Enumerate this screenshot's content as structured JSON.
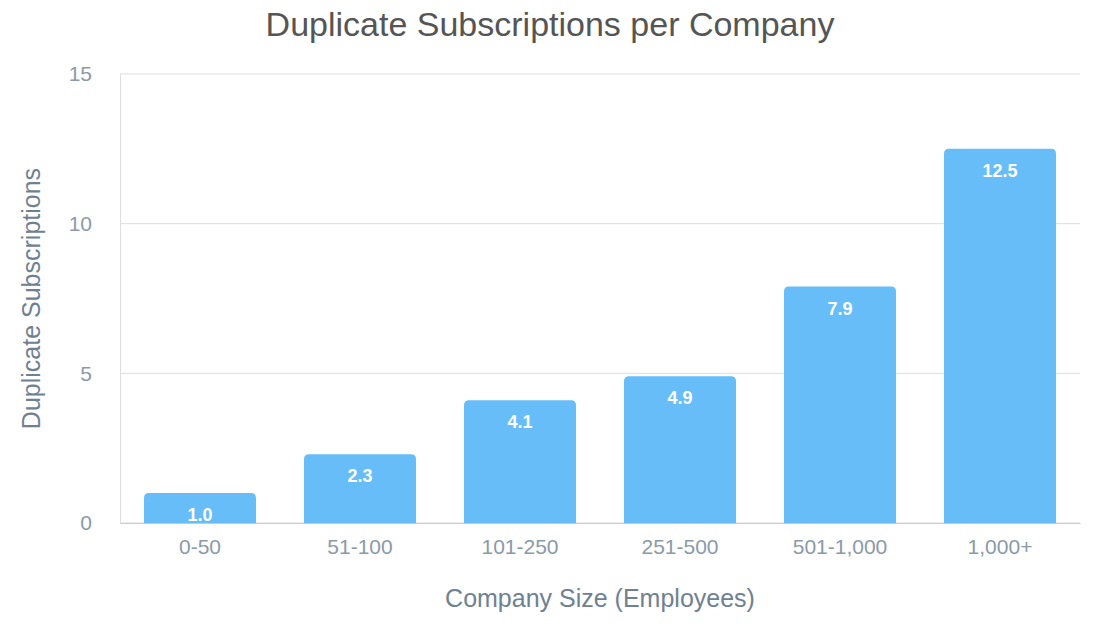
{
  "chart_data": {
    "type": "bar",
    "title": "Duplicate Subscriptions per Company",
    "x_label": "Company Size (Employees)",
    "y_label": "Duplicate Subscriptions",
    "categories": [
      "0-50",
      "51-100",
      "101-250",
      "251-500",
      "501-1,000",
      "1,000+"
    ],
    "values": [
      1.0,
      2.3,
      4.1,
      4.9,
      7.9,
      12.5
    ],
    "value_labels": [
      "1.0",
      "2.3",
      "4.1",
      "4.9",
      "7.9",
      "12.5"
    ],
    "color": "#66bdf7",
    "ylim": [
      0,
      15
    ],
    "yticks": [
      0,
      5,
      10,
      15
    ],
    "grid": true,
    "data_labels": true
  }
}
